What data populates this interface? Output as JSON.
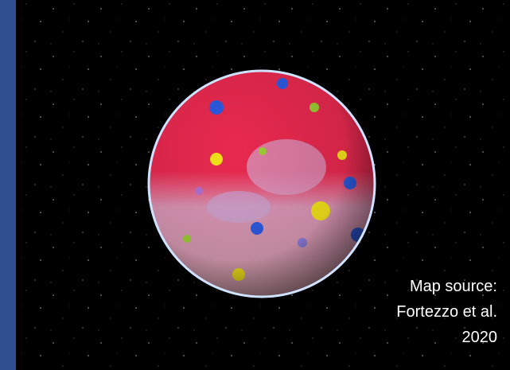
{
  "caption": {
    "lines": [
      "Map source:",
      "Fortezzo et al.",
      "2020"
    ]
  }
}
